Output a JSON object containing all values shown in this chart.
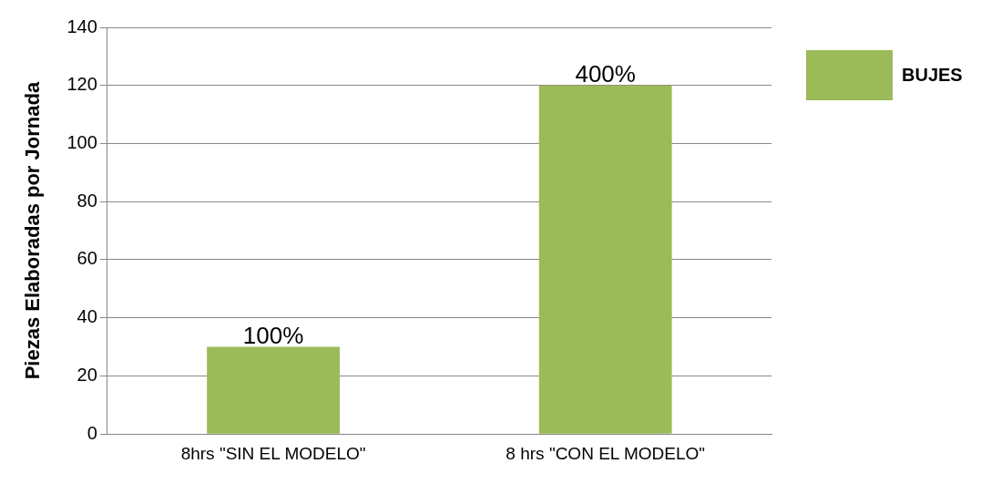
{
  "chart_data": {
    "type": "bar",
    "ylabel": "Piezas Elaboradas por Jornada",
    "categories": [
      "8hrs \"SIN EL MODELO\"",
      "8 hrs \"CON EL MODELO\""
    ],
    "series": [
      {
        "name": "BUJES",
        "color": "#9bbb59",
        "values": [
          30,
          120
        ]
      }
    ],
    "annotations": [
      {
        "text": "100%",
        "x": "8hrs \"SIN EL MODELO\"",
        "y": 30
      },
      {
        "text": "400%",
        "x": "8 hrs \"CON EL MODELO\"",
        "y": 120
      }
    ],
    "ylim": [
      0,
      140
    ],
    "yticks": [
      0,
      20,
      40,
      60,
      80,
      100,
      120,
      140
    ],
    "grid": "y",
    "legend": "top right"
  }
}
